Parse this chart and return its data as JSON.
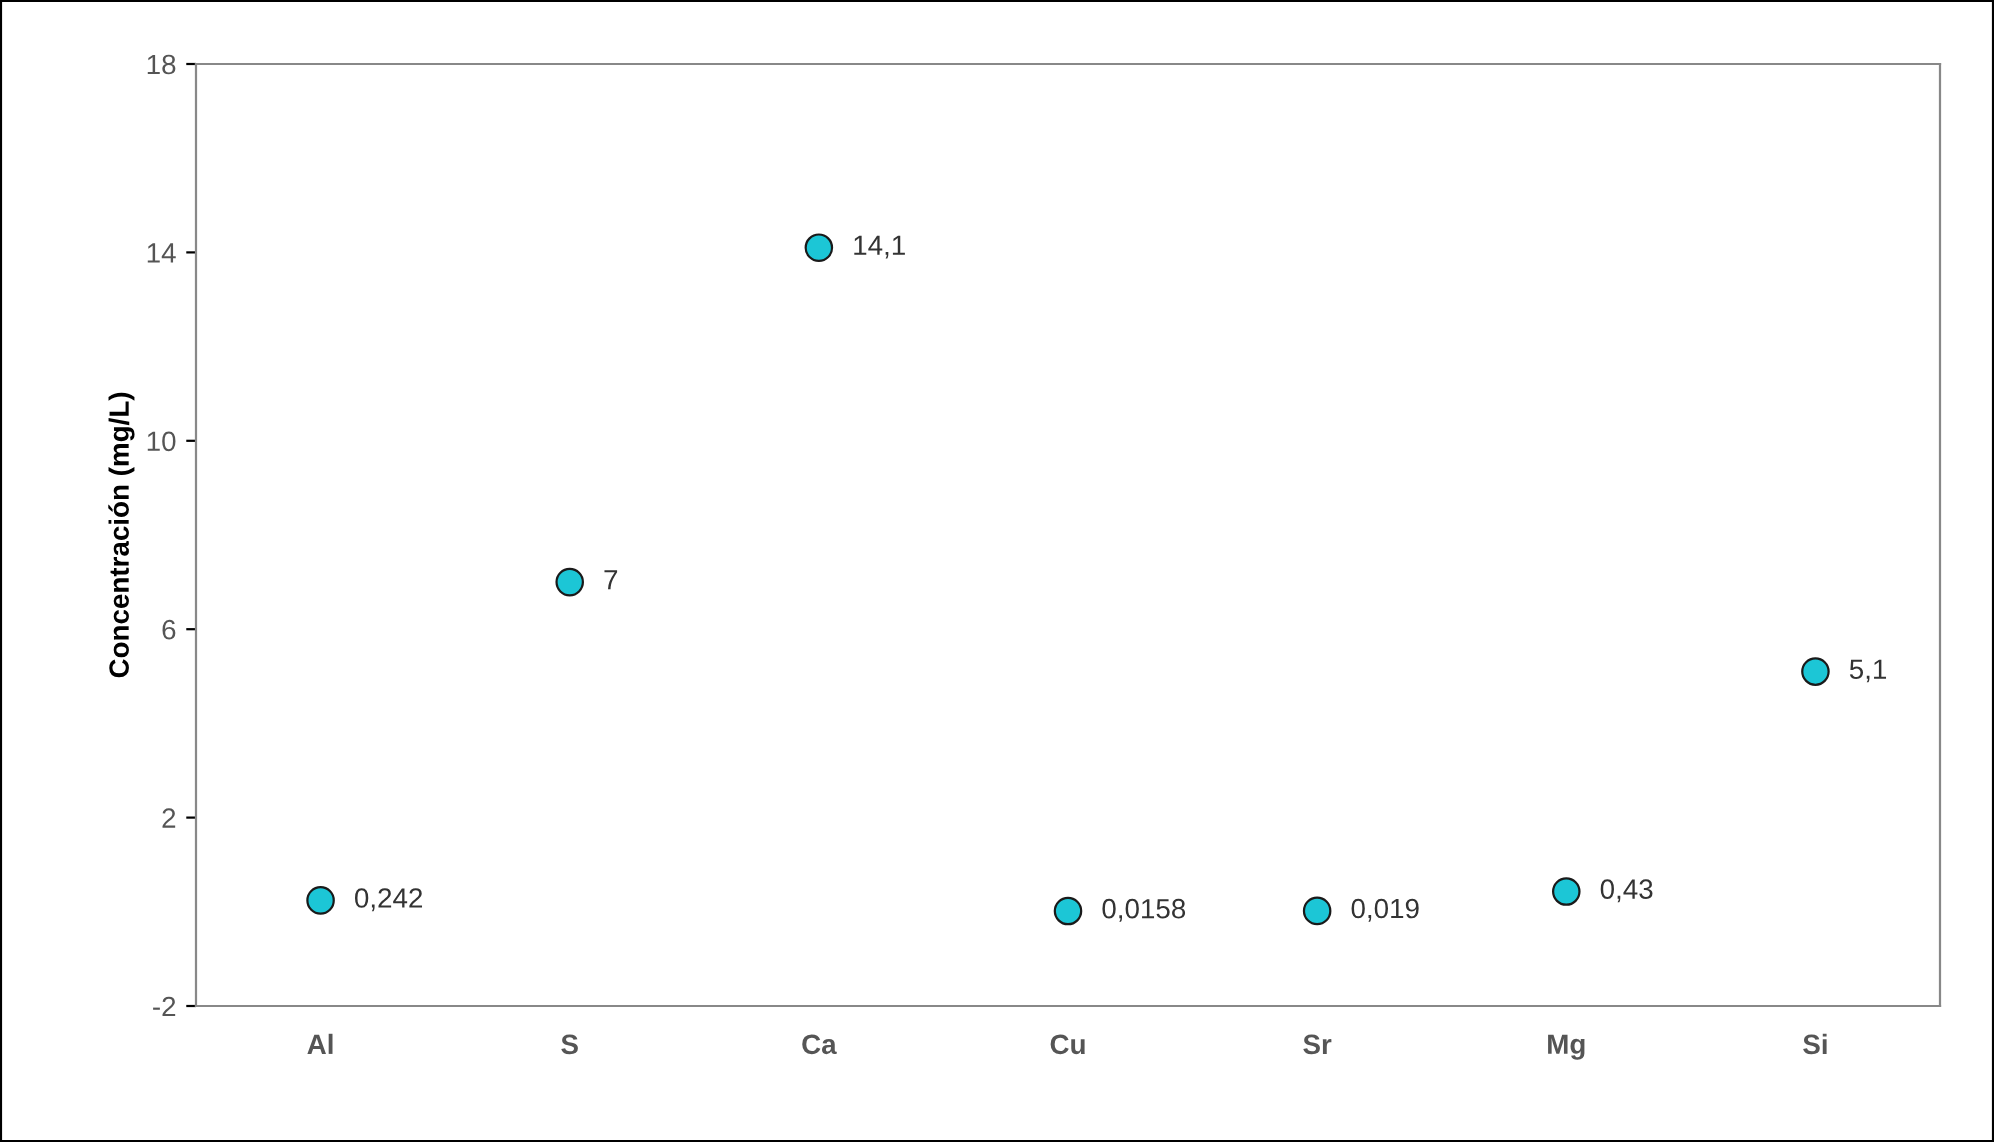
{
  "chart_data": {
    "type": "scatter",
    "ylabel": "Concentración (mg/L)",
    "categories": [
      "Al",
      "S",
      "Ca",
      "Cu",
      "Sr",
      "Mg",
      "Si"
    ],
    "series": [
      {
        "color": "#1cc6d6",
        "values": [
          0.242,
          7,
          14.1,
          0.0158,
          0.019,
          0.43,
          5.1
        ],
        "value_labels": [
          "0,242",
          "7",
          "14,1",
          "0,0158",
          "0,019",
          "0,43",
          "5,1"
        ]
      }
    ],
    "marker": "circle",
    "ylim": [
      -2,
      18
    ],
    "yticks": [
      -2,
      2,
      6,
      10,
      14,
      18
    ],
    "grid": false
  }
}
